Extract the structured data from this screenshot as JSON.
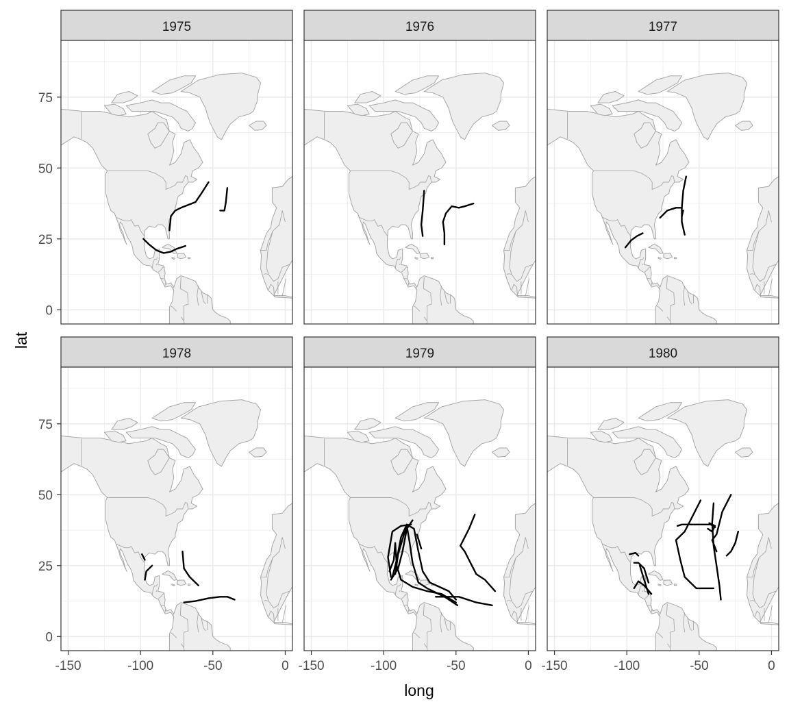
{
  "chart_data": {
    "type": "map-facets",
    "facet_variable": "year",
    "xlabel": "long",
    "ylabel": "lat",
    "xlim": [
      -155,
      5
    ],
    "ylim": [
      -5,
      95
    ],
    "x_ticks": [
      -150,
      -100,
      -50,
      0
    ],
    "y_ticks": [
      0,
      25,
      50,
      75
    ],
    "grid": true,
    "land_color": "#eeeeee",
    "border_color": "#a6a6a6",
    "track_color": "#000000",
    "facets": [
      {
        "label": "1975",
        "tracks": [
          [
            [
              -80,
              28
            ],
            [
              -79,
              33
            ],
            [
              -76,
              35
            ],
            [
              -72,
              36
            ],
            [
              -67,
              37
            ],
            [
              -62,
              38
            ],
            [
              -58,
              41
            ],
            [
              -53,
              45
            ]
          ],
          [
            [
              -40,
              43
            ],
            [
              -41,
              38
            ],
            [
              -42,
              35
            ],
            [
              -45,
              35
            ]
          ],
          [
            [
              -98,
              25
            ],
            [
              -94,
              23
            ],
            [
              -89,
              21
            ],
            [
              -84,
              20
            ],
            [
              -79,
              20.5
            ],
            [
              -75,
              21.5
            ],
            [
              -69,
              22.5
            ]
          ]
        ]
      },
      {
        "label": "1976",
        "tracks": [
          [
            [
              -72,
              42
            ],
            [
              -73,
              35
            ],
            [
              -74,
              30
            ],
            [
              -73,
              26
            ]
          ],
          [
            [
              -58,
              23
            ],
            [
              -58,
              27
            ],
            [
              -59,
              31
            ],
            [
              -57,
              34
            ],
            [
              -53,
              36.5
            ],
            [
              -48,
              36
            ],
            [
              -44,
              36.5
            ],
            [
              -38,
              37.5
            ]
          ]
        ]
      },
      {
        "label": "1977",
        "tracks": [
          [
            [
              -101,
              22
            ],
            [
              -97,
              24.5
            ],
            [
              -93,
              26
            ],
            [
              -89,
              27
            ]
          ],
          [
            [
              -77,
              32.5
            ],
            [
              -72,
              35
            ],
            [
              -66,
              36
            ],
            [
              -62,
              36
            ]
          ],
          [
            [
              -60,
              26.5
            ],
            [
              -62,
              31
            ],
            [
              -62,
              36
            ],
            [
              -61,
              42
            ],
            [
              -59,
              47
            ]
          ],
          [
            [
              -62,
              33
            ],
            [
              -61,
              35
            ]
          ]
        ]
      },
      {
        "label": "1978",
        "tracks": [
          [
            [
              -97,
              27
            ],
            [
              -99,
              29
            ]
          ],
          [
            [
              -97,
              20
            ],
            [
              -96,
              23
            ],
            [
              -92,
              25
            ]
          ],
          [
            [
              -71,
              30
            ],
            [
              -70,
              24
            ],
            [
              -66,
              21
            ],
            [
              -60,
              18
            ]
          ],
          [
            [
              -70,
              12
            ],
            [
              -62,
              12.5
            ],
            [
              -53,
              13.5
            ],
            [
              -45,
              14
            ],
            [
              -40,
              14
            ],
            [
              -35,
              13
            ]
          ]
        ]
      },
      {
        "label": "1979",
        "tracks": [
          [
            [
              -95,
              21
            ],
            [
              -97,
              28
            ],
            [
              -94,
              37
            ],
            [
              -88,
              39
            ],
            [
              -81,
              39.5
            ]
          ],
          [
            [
              -95,
              20
            ],
            [
              -90,
              24
            ],
            [
              -87,
              30
            ],
            [
              -84,
              38
            ],
            [
              -80,
              41
            ]
          ],
          [
            [
              -94,
              21
            ],
            [
              -91,
              27
            ],
            [
              -88,
              35
            ],
            [
              -84,
              39.5
            ],
            [
              -79,
              38
            ],
            [
              -76,
              30
            ],
            [
              -73,
              23
            ],
            [
              -68,
              19
            ],
            [
              -55,
              16
            ],
            [
              -50,
              13
            ]
          ],
          [
            [
              -92,
              22
            ],
            [
              -90,
              29
            ],
            [
              -86,
              36
            ],
            [
              -84,
              39
            ],
            [
              -82,
              33
            ],
            [
              -80,
              26
            ],
            [
              -76,
              19
            ],
            [
              -70,
              17
            ],
            [
              -58,
              14
            ],
            [
              -49,
              11
            ]
          ],
          [
            [
              -77,
              36
            ],
            [
              -74,
              31
            ]
          ],
          [
            [
              -96,
              23
            ],
            [
              -93,
              27
            ],
            [
              -92,
              33
            ],
            [
              -91,
              25
            ],
            [
              -88,
              20
            ],
            [
              -80,
              17.5
            ],
            [
              -70,
              16
            ],
            [
              -60,
              15
            ],
            [
              -50,
              12
            ]
          ],
          [
            [
              -64,
              14
            ],
            [
              -48,
              14
            ],
            [
              -36,
              12
            ],
            [
              -25,
              11
            ]
          ],
          [
            [
              -37,
              43
            ],
            [
              -41,
              38
            ],
            [
              -47,
              32
            ],
            [
              -44,
              30
            ],
            [
              -40,
              26
            ],
            [
              -36,
              22
            ],
            [
              -30,
              20
            ],
            [
              -23,
              16
            ]
          ]
        ]
      },
      {
        "label": "1980",
        "tracks": [
          [
            [
              -98,
              29
            ],
            [
              -94,
              29.5
            ],
            [
              -92,
              28.5
            ]
          ],
          [
            [
              -95,
              26
            ],
            [
              -92,
              26
            ],
            [
              -88,
              24
            ],
            [
              -85,
              19
            ]
          ],
          [
            [
              -91,
              25
            ],
            [
              -88,
              20
            ],
            [
              -85,
              15
            ]
          ],
          [
            [
              -95,
              17
            ],
            [
              -92,
              19.5
            ],
            [
              -88,
              18
            ],
            [
              -83,
              15
            ]
          ],
          [
            [
              -49,
              48
            ],
            [
              -60,
              37
            ],
            [
              -66,
              34
            ],
            [
              -63,
              27
            ],
            [
              -60,
              21
            ],
            [
              -52,
              17
            ],
            [
              -40,
              17
            ]
          ],
          [
            [
              -65,
              39
            ],
            [
              -62,
              39.5
            ],
            [
              -52,
              39.5
            ],
            [
              -42,
              39.5
            ],
            [
              -39,
              38.5
            ]
          ],
          [
            [
              -40,
              47
            ],
            [
              -41,
              40
            ],
            [
              -40,
              32
            ],
            [
              -38,
              25
            ],
            [
              -36,
              18
            ],
            [
              -35,
              13
            ]
          ],
          [
            [
              -28,
              50
            ],
            [
              -34,
              44
            ],
            [
              -36,
              40
            ],
            [
              -38,
              36
            ],
            [
              -41,
              34
            ],
            [
              -38,
              30
            ]
          ],
          [
            [
              -23,
              37
            ],
            [
              -25,
              33
            ],
            [
              -28,
              30
            ],
            [
              -31,
              28.5
            ]
          ],
          [
            [
              -44,
              38
            ],
            [
              -41,
              37
            ],
            [
              -39,
              39
            ],
            [
              -43,
              40
            ]
          ]
        ]
      }
    ]
  }
}
